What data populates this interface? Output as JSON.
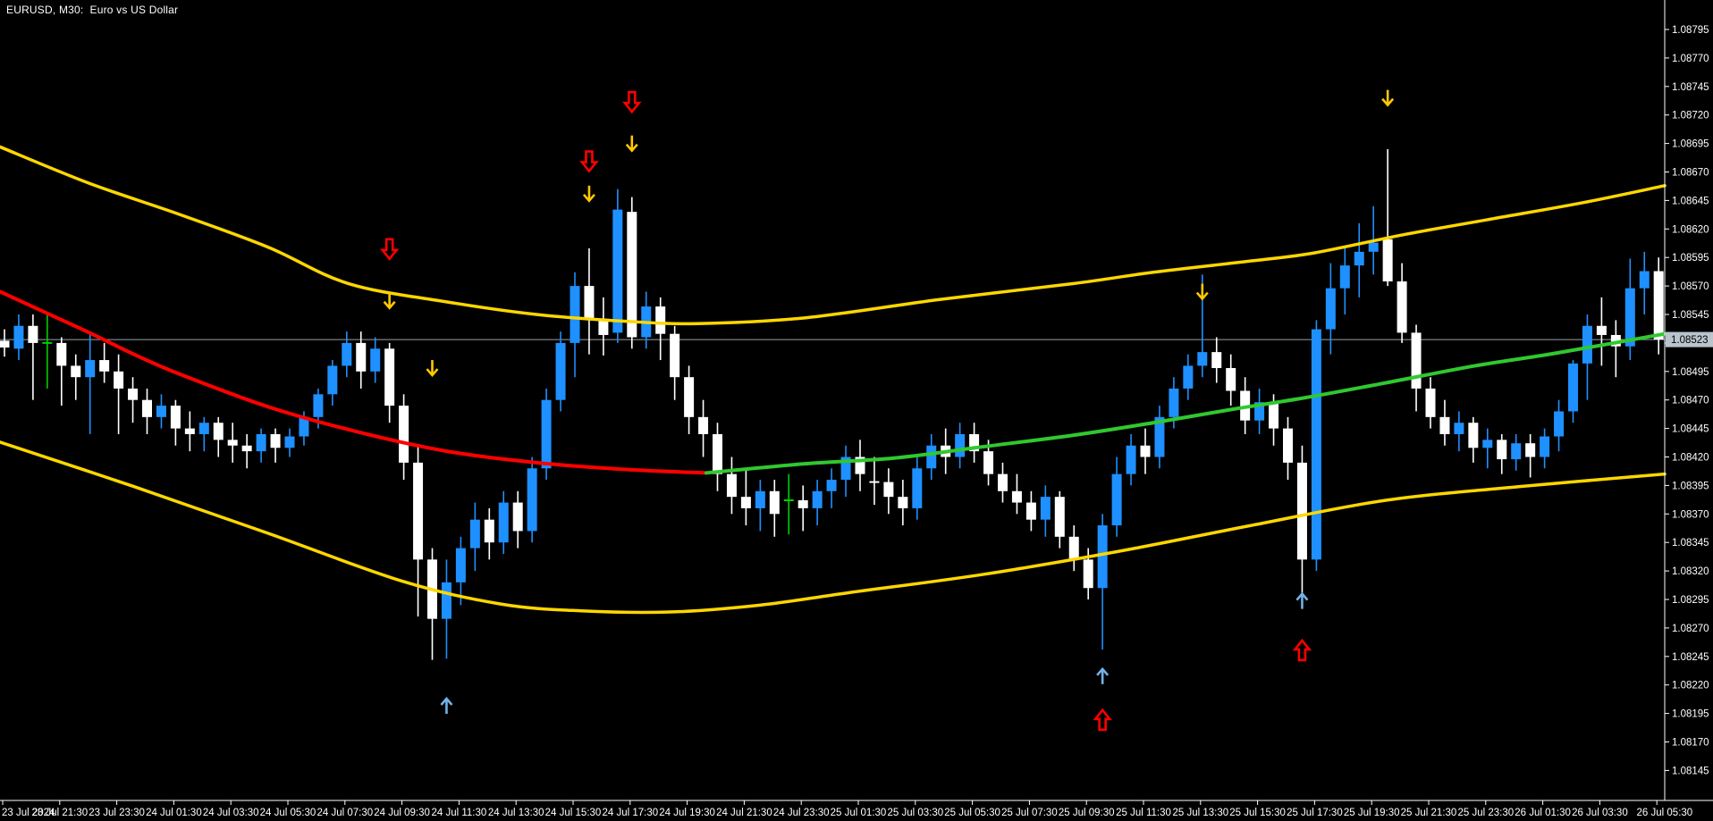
{
  "window_title": "EURUSD, M30:  Euro vs US Dollar",
  "chart_data": {
    "type": "candlestick",
    "title": "EURUSD, M30:  Euro vs US Dollar",
    "symbol": "EURUSD",
    "timeframe": "M30",
    "start_time": "2024-07-23 19:30",
    "step_minutes": 30,
    "bid": {
      "label": "1.08523",
      "price": 1.08523
    },
    "price_axis": {
      "top": 1.08795,
      "bottom": 1.08145,
      "step": 0.00025,
      "labels": [
        "1.08795",
        "1.08770",
        "1.08745",
        "1.08720",
        "1.08695",
        "1.08670",
        "1.08645",
        "1.08620",
        "1.08595",
        "1.08570",
        "1.08545",
        "1.08520",
        "1.08495",
        "1.08470",
        "1.08445",
        "1.08420",
        "1.08395",
        "1.08370",
        "1.08345",
        "1.08320",
        "1.08295",
        "1.08270",
        "1.08245",
        "1.08220",
        "1.08195",
        "1.08170",
        "1.08145"
      ]
    },
    "time_axis": {
      "labels": [
        "23 Jul 2024",
        "23 Jul 21:30",
        "23 Jul 23:30",
        "24 Jul 01:30",
        "24 Jul 03:30",
        "24 Jul 05:30",
        "24 Jul 07:30",
        "24 Jul 09:30",
        "24 Jul 11:30",
        "24 Jul 13:30",
        "24 Jul 15:30",
        "24 Jul 17:30",
        "24 Jul 19:30",
        "24 Jul 21:30",
        "24 Jul 23:30",
        "25 Jul 01:30",
        "25 Jul 03:30",
        "25 Jul 05:30",
        "25 Jul 07:30",
        "25 Jul 09:30",
        "25 Jul 11:30",
        "25 Jul 13:30",
        "25 Jul 15:30",
        "25 Jul 17:30",
        "25 Jul 19:30",
        "25 Jul 21:30",
        "25 Jul 23:30",
        "26 Jul 01:30",
        "26 Jul 03:30",
        "26 Jul 05:30"
      ],
      "candles_per_label": 4
    },
    "candles": [
      [
        1.08522,
        1.08532,
        1.08508,
        1.08516
      ],
      [
        1.08515,
        1.08545,
        1.08505,
        1.08535
      ],
      [
        1.08535,
        1.08545,
        1.0847,
        1.0852
      ],
      [
        1.0852,
        1.08545,
        1.0848,
        1.0852
      ],
      [
        1.0852,
        1.08525,
        1.08465,
        1.085
      ],
      [
        1.085,
        1.0851,
        1.0847,
        1.0849
      ],
      [
        1.0849,
        1.0853,
        1.0844,
        1.08505
      ],
      [
        1.08505,
        1.0852,
        1.08485,
        1.08495
      ],
      [
        1.08495,
        1.0851,
        1.0844,
        1.0848
      ],
      [
        1.0848,
        1.0849,
        1.0845,
        1.0847
      ],
      [
        1.0847,
        1.0848,
        1.0844,
        1.08455
      ],
      [
        1.08455,
        1.08475,
        1.08445,
        1.08465
      ],
      [
        1.08465,
        1.0847,
        1.0843,
        1.08445
      ],
      [
        1.08445,
        1.0846,
        1.08425,
        1.0844
      ],
      [
        1.0844,
        1.08455,
        1.08425,
        1.0845
      ],
      [
        1.0845,
        1.08455,
        1.0842,
        1.08435
      ],
      [
        1.08435,
        1.0845,
        1.08415,
        1.0843
      ],
      [
        1.0843,
        1.0844,
        1.0841,
        1.08425
      ],
      [
        1.08425,
        1.08445,
        1.08415,
        1.0844
      ],
      [
        1.0844,
        1.08445,
        1.08415,
        1.08428
      ],
      [
        1.08428,
        1.08445,
        1.0842,
        1.08438
      ],
      [
        1.08438,
        1.0846,
        1.0843,
        1.08455
      ],
      [
        1.08455,
        1.0848,
        1.08445,
        1.08475
      ],
      [
        1.08475,
        1.08505,
        1.08465,
        1.085
      ],
      [
        1.085,
        1.0853,
        1.0849,
        1.0852
      ],
      [
        1.0852,
        1.0853,
        1.0848,
        1.08495
      ],
      [
        1.08495,
        1.08525,
        1.08485,
        1.08515
      ],
      [
        1.08515,
        1.0852,
        1.0845,
        1.08465
      ],
      [
        1.08465,
        1.08475,
        1.084,
        1.08415
      ],
      [
        1.08415,
        1.0843,
        1.0828,
        1.0833
      ],
      [
        1.0833,
        1.0834,
        1.08242,
        1.08278
      ],
      [
        1.08278,
        1.0833,
        1.08243,
        1.0831
      ],
      [
        1.0831,
        1.0835,
        1.0829,
        1.0834
      ],
      [
        1.0834,
        1.0838,
        1.0832,
        1.08365
      ],
      [
        1.08365,
        1.08375,
        1.0833,
        1.08345
      ],
      [
        1.08345,
        1.0839,
        1.08335,
        1.0838
      ],
      [
        1.0838,
        1.0839,
        1.0834,
        1.08355
      ],
      [
        1.08355,
        1.0842,
        1.08345,
        1.0841
      ],
      [
        1.0841,
        1.0848,
        1.084,
        1.0847
      ],
      [
        1.0847,
        1.0853,
        1.0846,
        1.0852
      ],
      [
        1.0852,
        1.08582,
        1.0849,
        1.0857
      ],
      [
        1.0857,
        1.08603,
        1.0851,
        1.08541
      ],
      [
        1.08541,
        1.0856,
        1.08509,
        1.08527
      ],
      [
        1.08529,
        1.08655,
        1.0852,
        1.08637
      ],
      [
        1.08635,
        1.08648,
        1.08515,
        1.08525
      ],
      [
        1.08525,
        1.08565,
        1.08515,
        1.08552
      ],
      [
        1.08552,
        1.0856,
        1.08505,
        1.08528
      ],
      [
        1.08528,
        1.08535,
        1.0847,
        1.0849
      ],
      [
        1.0849,
        1.085,
        1.0844,
        1.08455
      ],
      [
        1.08455,
        1.0847,
        1.0842,
        1.0844
      ],
      [
        1.0844,
        1.0845,
        1.0839,
        1.08405
      ],
      [
        1.08405,
        1.0842,
        1.0837,
        1.08385
      ],
      [
        1.08385,
        1.0841,
        1.0836,
        1.08375
      ],
      [
        1.08375,
        1.084,
        1.08355,
        1.0839
      ],
      [
        1.0839,
        1.084,
        1.0835,
        1.0837
      ],
      [
        1.08382,
        1.08405,
        1.08352,
        1.08382
      ],
      [
        1.08382,
        1.08395,
        1.08355,
        1.08375
      ],
      [
        1.08375,
        1.084,
        1.0836,
        1.0839
      ],
      [
        1.0839,
        1.0841,
        1.08375,
        1.084
      ],
      [
        1.084,
        1.0843,
        1.08385,
        1.0842
      ],
      [
        1.0842,
        1.08435,
        1.0839,
        1.08405
      ],
      [
        1.08398,
        1.0842,
        1.08378,
        1.08398
      ],
      [
        1.08398,
        1.0841,
        1.0837,
        1.08385
      ],
      [
        1.08385,
        1.084,
        1.0836,
        1.08375
      ],
      [
        1.08375,
        1.0842,
        1.08365,
        1.0841
      ],
      [
        1.0841,
        1.0844,
        1.084,
        1.0843
      ],
      [
        1.0843,
        1.08445,
        1.08405,
        1.0842
      ],
      [
        1.0842,
        1.0845,
        1.0841,
        1.0844
      ],
      [
        1.0844,
        1.0845,
        1.08415,
        1.08425
      ],
      [
        1.08425,
        1.08435,
        1.08395,
        1.08405
      ],
      [
        1.08405,
        1.08415,
        1.0838,
        1.0839
      ],
      [
        1.0839,
        1.08405,
        1.0837,
        1.0838
      ],
      [
        1.0838,
        1.0839,
        1.08355,
        1.08365
      ],
      [
        1.08365,
        1.08395,
        1.0835,
        1.08385
      ],
      [
        1.08385,
        1.0839,
        1.0834,
        1.0835
      ],
      [
        1.0835,
        1.0836,
        1.0832,
        1.0833
      ],
      [
        1.0833,
        1.0834,
        1.08295,
        1.08305
      ],
      [
        1.08305,
        1.0837,
        1.08251,
        1.0836
      ],
      [
        1.0836,
        1.0842,
        1.0835,
        1.08405
      ],
      [
        1.08405,
        1.0844,
        1.08395,
        1.0843
      ],
      [
        1.0843,
        1.08445,
        1.08405,
        1.0842
      ],
      [
        1.0842,
        1.08465,
        1.0841,
        1.08455
      ],
      [
        1.08455,
        1.0849,
        1.08445,
        1.0848
      ],
      [
        1.0848,
        1.0851,
        1.0847,
        1.085
      ],
      [
        1.085,
        1.0858,
        1.0849,
        1.08512
      ],
      [
        1.08512,
        1.08525,
        1.08485,
        1.08498
      ],
      [
        1.08498,
        1.0851,
        1.08465,
        1.08478
      ],
      [
        1.08478,
        1.0849,
        1.0844,
        1.08452
      ],
      [
        1.08452,
        1.0848,
        1.0844,
        1.08468
      ],
      [
        1.08468,
        1.08475,
        1.0843,
        1.08445
      ],
      [
        1.08445,
        1.08455,
        1.084,
        1.08415
      ],
      [
        1.08415,
        1.0843,
        1.08297,
        1.0833
      ],
      [
        1.0833,
        1.0854,
        1.0832,
        1.08532
      ],
      [
        1.08532,
        1.0859,
        1.0851,
        1.08568
      ],
      [
        1.08568,
        1.08605,
        1.08545,
        1.08588
      ],
      [
        1.08588,
        1.08625,
        1.0856,
        1.086
      ],
      [
        1.086,
        1.0864,
        1.0858,
        1.08608
      ],
      [
        1.08611,
        1.0869,
        1.0857,
        1.08574
      ],
      [
        1.08574,
        1.0859,
        1.0852,
        1.08529
      ],
      [
        1.08529,
        1.08536,
        1.0846,
        1.0848
      ],
      [
        1.0848,
        1.0849,
        1.08445,
        1.08455
      ],
      [
        1.08455,
        1.0847,
        1.0843,
        1.0844
      ],
      [
        1.0844,
        1.0846,
        1.08425,
        1.0845
      ],
      [
        1.0845,
        1.08455,
        1.08415,
        1.08428
      ],
      [
        1.08428,
        1.08445,
        1.0841,
        1.08435
      ],
      [
        1.08435,
        1.0844,
        1.08405,
        1.08418
      ],
      [
        1.08418,
        1.0844,
        1.08408,
        1.08432
      ],
      [
        1.08432,
        1.0844,
        1.08402,
        1.0842
      ],
      [
        1.0842,
        1.08445,
        1.0841,
        1.08438
      ],
      [
        1.08438,
        1.0847,
        1.08425,
        1.0846
      ],
      [
        1.0846,
        1.08505,
        1.0845,
        1.08502
      ],
      [
        1.08502,
        1.08545,
        1.0847,
        1.08535
      ],
      [
        1.08535,
        1.0856,
        1.085,
        1.08527
      ],
      [
        1.08527,
        1.0854,
        1.0849,
        1.08517
      ],
      [
        1.08517,
        1.08594,
        1.08505,
        1.08568
      ],
      [
        1.08568,
        1.086,
        1.08545,
        1.08583
      ],
      [
        1.08583,
        1.08595,
        1.0851,
        1.08523
      ]
    ],
    "green_doji_indices": [
      3,
      55
    ],
    "overlays": {
      "upper_band": [
        [
          0,
          1.08692
        ],
        [
          100,
          1.0866
        ],
        [
          200,
          1.08633
        ],
        [
          300,
          1.08604
        ],
        [
          390,
          1.08572
        ],
        [
          500,
          1.08556
        ],
        [
          600,
          1.08545
        ],
        [
          700,
          1.08539
        ],
        [
          780,
          1.08537
        ],
        [
          900,
          1.08542
        ],
        [
          1050,
          1.08558
        ],
        [
          1200,
          1.08572
        ],
        [
          1290,
          1.08582
        ],
        [
          1400,
          1.08592
        ],
        [
          1470,
          1.08599
        ],
        [
          1570,
          1.08615
        ],
        [
          1670,
          1.08629
        ],
        [
          1770,
          1.08643
        ],
        [
          1862,
          1.08658
        ]
      ],
      "lower_band": [
        [
          0,
          1.08433
        ],
        [
          150,
          1.08394
        ],
        [
          300,
          1.08353
        ],
        [
          450,
          1.08311
        ],
        [
          560,
          1.08291
        ],
        [
          650,
          1.08285
        ],
        [
          750,
          1.08284
        ],
        [
          850,
          1.0829
        ],
        [
          950,
          1.08301
        ],
        [
          1100,
          1.08317
        ],
        [
          1250,
          1.08337
        ],
        [
          1400,
          1.0836
        ],
        [
          1550,
          1.08382
        ],
        [
          1700,
          1.08394
        ],
        [
          1862,
          1.08405
        ]
      ],
      "ma_down": [
        [
          0,
          1.08565
        ],
        [
          50,
          1.08547
        ],
        [
          100,
          1.08529
        ],
        [
          150,
          1.0851
        ],
        [
          200,
          1.08493
        ],
        [
          300,
          1.08464
        ],
        [
          400,
          1.08442
        ],
        [
          500,
          1.08425
        ],
        [
          600,
          1.08415
        ],
        [
          700,
          1.08409
        ],
        [
          790,
          1.08406
        ]
      ],
      "ma_up": [
        [
          790,
          1.08406
        ],
        [
          900,
          1.08414
        ],
        [
          1000,
          1.08419
        ],
        [
          1100,
          1.08429
        ],
        [
          1200,
          1.08439
        ],
        [
          1290,
          1.0845
        ],
        [
          1380,
          1.08462
        ],
        [
          1460,
          1.08472
        ],
        [
          1550,
          1.08485
        ],
        [
          1650,
          1.085
        ],
        [
          1740,
          1.08511
        ],
        [
          1862,
          1.08528
        ]
      ]
    },
    "signals": [
      {
        "i": 27,
        "kind": "red-down",
        "p": 1.08611
      },
      {
        "i": 27,
        "kind": "yellow-down",
        "p": 1.08564
      },
      {
        "i": 30,
        "kind": "yellow-down",
        "p": 1.08505
      },
      {
        "i": 31,
        "kind": "blue-up",
        "p": 1.08208
      },
      {
        "i": 41,
        "kind": "red-down",
        "p": 1.08688
      },
      {
        "i": 41,
        "kind": "yellow-down",
        "p": 1.08658
      },
      {
        "i": 44,
        "kind": "red-down",
        "p": 1.0874
      },
      {
        "i": 44,
        "kind": "yellow-down",
        "p": 1.08702
      },
      {
        "i": 77,
        "kind": "blue-up",
        "p": 1.08234
      },
      {
        "i": 77,
        "kind": "red-up",
        "p": 1.08198
      },
      {
        "i": 84,
        "kind": "yellow-down",
        "p": 1.08572
      },
      {
        "i": 91,
        "kind": "blue-up",
        "p": 1.083
      },
      {
        "i": 91,
        "kind": "red-up",
        "p": 1.08259
      },
      {
        "i": 97,
        "kind": "yellow-down",
        "p": 1.08742
      }
    ],
    "colors": {
      "background": "#000000",
      "bull_candle": "#1E90FF",
      "bear_candle": "#FFFFFF",
      "doji_green": "#00D000",
      "band": "#FFD700",
      "ma_down": "#FF0000",
      "ma_up": "#30C830",
      "bid_line": "#97A1AA",
      "price_box_bg": "#B9C4CD",
      "price_box_text": "#000000",
      "axis_text": "#FFFFFF",
      "axis_line": "#FFFFFF",
      "arrow_up_blue": "#74B2E8",
      "arrow_strong_red": "#FF0000",
      "arrow_signal_yellow": "#FFC800"
    },
    "legend_position": "none",
    "grid": false
  }
}
